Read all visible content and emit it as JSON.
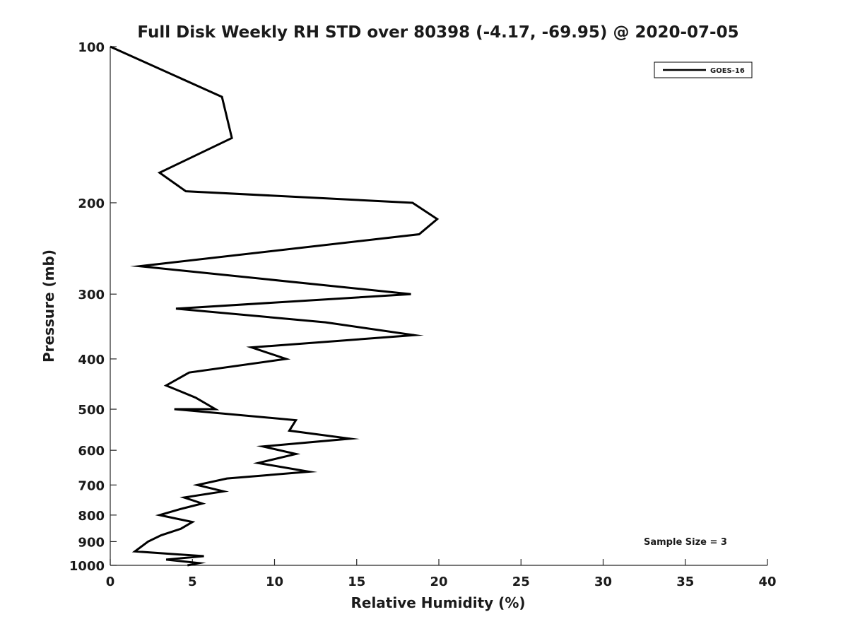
{
  "chart_data": {
    "type": "line",
    "title": "Full Disk Weekly RH STD over 80398 (-4.17, -69.95) @ 2020-07-05",
    "xlabel": "Relative Humidity (%)",
    "ylabel": "Pressure (mb)",
    "xlim": [
      0,
      40
    ],
    "ylim": [
      100,
      1000
    ],
    "y_scale": "log",
    "y_reversed": true,
    "x_ticks": [
      0,
      5,
      10,
      15,
      20,
      25,
      30,
      35,
      40
    ],
    "y_ticks": [
      100,
      200,
      300,
      400,
      500,
      600,
      700,
      800,
      900,
      1000
    ],
    "grid": false,
    "legend_position": "top-right",
    "annotation": "Sample Size = 3",
    "series": [
      {
        "name": "GOES-16",
        "color": "#000000",
        "points": [
          [
            0.0,
            100
          ],
          [
            6.8,
            125
          ],
          [
            7.4,
            150
          ],
          [
            3.0,
            175
          ],
          [
            4.6,
            190
          ],
          [
            18.4,
            200
          ],
          [
            19.9,
            215
          ],
          [
            18.8,
            230
          ],
          [
            1.8,
            265
          ],
          [
            18.3,
            300
          ],
          [
            4.0,
            320
          ],
          [
            13.1,
            340
          ],
          [
            18.5,
            360
          ],
          [
            8.6,
            380
          ],
          [
            10.7,
            400
          ],
          [
            4.8,
            425
          ],
          [
            3.4,
            450
          ],
          [
            5.2,
            475
          ],
          [
            6.4,
            500
          ],
          [
            3.9,
            500
          ],
          [
            11.3,
            525
          ],
          [
            10.9,
            550
          ],
          [
            14.6,
            570
          ],
          [
            9.3,
            590
          ],
          [
            11.3,
            610
          ],
          [
            9.0,
            635
          ],
          [
            12.1,
            660
          ],
          [
            7.1,
            680
          ],
          [
            5.3,
            700
          ],
          [
            6.9,
            720
          ],
          [
            4.5,
            740
          ],
          [
            5.6,
            760
          ],
          [
            4.2,
            780
          ],
          [
            3.0,
            800
          ],
          [
            5.0,
            825
          ],
          [
            4.3,
            850
          ],
          [
            3.1,
            875
          ],
          [
            2.3,
            900
          ],
          [
            1.5,
            940
          ],
          [
            5.7,
            960
          ],
          [
            3.4,
            975
          ],
          [
            5.4,
            990
          ],
          [
            4.7,
            1000
          ]
        ]
      }
    ]
  }
}
